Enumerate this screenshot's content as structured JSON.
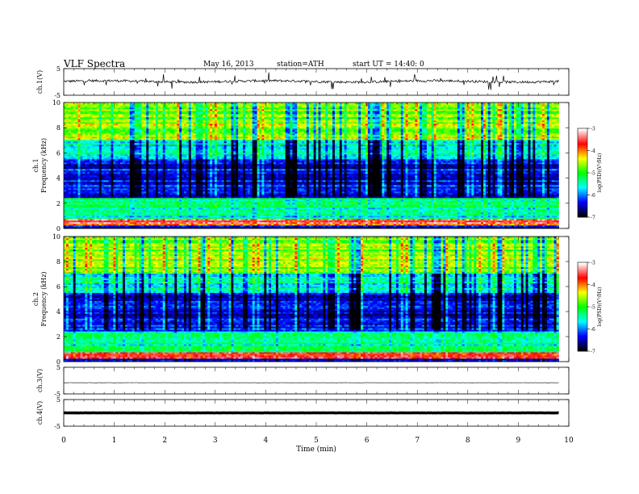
{
  "header": {
    "title": "VLF Spectra",
    "date": "May 16, 2013",
    "station": "station=ATH",
    "start_ut": "start UT =  14:40: 0"
  },
  "chart_data": [
    {
      "type": "line",
      "panel": "ch1-timeseries",
      "ylabel": "ch.1(V)",
      "ylim": [
        -5,
        5
      ],
      "yticks": [
        "5",
        "-5"
      ],
      "xlim": [
        0,
        10
      ],
      "x_end": 9.8,
      "baseline": 0.2,
      "note": "noisy trace with frequent sharp spikes"
    },
    {
      "type": "heatmap",
      "panel": "ch1-spectrogram",
      "ylabel": [
        "ch.1",
        "Frequency  (kHz)"
      ],
      "ylim": [
        0,
        10
      ],
      "yticks": [
        "0",
        "2",
        "4",
        "6",
        "8",
        "10"
      ],
      "xlim": [
        0,
        10
      ],
      "x_end": 9.8,
      "colorbar": {
        "label": "log(PSD)(V²/Hz)",
        "range": [
          -7,
          -3
        ],
        "ticks": [
          "-3",
          "-4",
          "-5",
          "-6",
          "-7"
        ]
      },
      "levels_by_freq_khz": [
        {
          "f": [
            0,
            0.3
          ],
          "log_psd": -6.5
        },
        {
          "f": [
            0.3,
            0.8
          ],
          "log_psd": -3.6
        },
        {
          "f": [
            0.8,
            2.5
          ],
          "log_psd": -5.4
        },
        {
          "f": [
            2.5,
            5.5
          ],
          "log_psd": -6.3
        },
        {
          "f": [
            5.5,
            7
          ],
          "log_psd": -5.5
        },
        {
          "f": [
            7,
            10
          ],
          "log_psd": -4.6
        }
      ]
    },
    {
      "type": "heatmap",
      "panel": "ch2-spectrogram",
      "ylabel": [
        "ch.2",
        "Frequency  (kHz)"
      ],
      "ylim": [
        0,
        10
      ],
      "yticks": [
        "0",
        "2",
        "4",
        "6",
        "8",
        "10"
      ],
      "xlim": [
        0,
        10
      ],
      "x_end": 9.8,
      "colorbar": {
        "label": "log(PSD)(V²/Hz)",
        "range": [
          -7,
          -3
        ],
        "ticks": [
          "-3",
          "-4",
          "-5",
          "-6",
          "-7"
        ]
      },
      "levels_by_freq_khz": [
        {
          "f": [
            0,
            0.3
          ],
          "log_psd": -6.5
        },
        {
          "f": [
            0.3,
            0.8
          ],
          "log_psd": -3.6
        },
        {
          "f": [
            0.8,
            2.5
          ],
          "log_psd": -5.4
        },
        {
          "f": [
            2.5,
            5.5
          ],
          "log_psd": -6.3
        },
        {
          "f": [
            5.5,
            7
          ],
          "log_psd": -5.5
        },
        {
          "f": [
            7,
            10
          ],
          "log_psd": -4.6
        }
      ]
    },
    {
      "type": "line",
      "panel": "ch3-timeseries",
      "ylabel": "ch.3(V)",
      "ylim": [
        -5,
        5
      ],
      "yticks": [
        "5",
        "-5"
      ],
      "xlim": [
        0,
        10
      ],
      "x_end": 9.8,
      "baseline": -0.8
    },
    {
      "type": "line",
      "panel": "ch4-timeseries",
      "ylabel": "ch.4(V)",
      "ylim": [
        -5,
        5
      ],
      "yticks": [
        "5",
        "-5"
      ],
      "xlim": [
        0,
        10
      ],
      "x_end": 9.8,
      "baseline": 0,
      "xlabel": "Time  (min)",
      "xticks": [
        "0",
        "1",
        "2",
        "3",
        "4",
        "5",
        "6",
        "7",
        "8",
        "9",
        "10"
      ]
    }
  ],
  "colors": {
    "axis": "#000000",
    "trace": "#000000",
    "colormap": [
      "#000000",
      "#0000ff",
      "#00ffff",
      "#00ff00",
      "#ffff00",
      "#ff0000",
      "#ffffff"
    ]
  }
}
